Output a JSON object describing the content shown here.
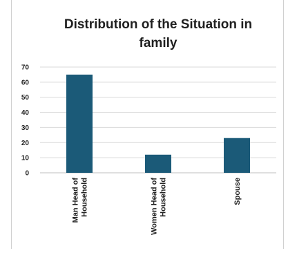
{
  "chart_data": {
    "type": "bar",
    "title_lines": [
      "Distribution of the Situation  in",
      "family"
    ],
    "categories": [
      [
        "Man Head of",
        "Household"
      ],
      [
        "Women Head of",
        "Household"
      ],
      [
        "Spouse"
      ]
    ],
    "values": [
      65,
      12,
      23
    ],
    "ylim": [
      0,
      70
    ],
    "yticks": [
      0,
      10,
      20,
      30,
      40,
      50,
      60,
      70
    ],
    "grid": true,
    "legend": "none",
    "colors": {
      "bar": "#1b5a78",
      "grid": "#d9d9d9",
      "axis": "#bfbfbf"
    }
  }
}
